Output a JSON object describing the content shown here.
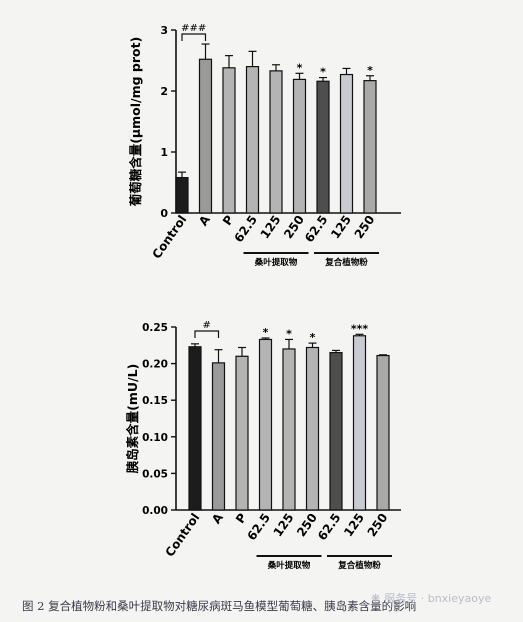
{
  "chart_data": [
    {
      "type": "bar",
      "ylabel": "葡萄糖含量(μmol/mg prot)",
      "ylim": [
        0,
        3
      ],
      "yticks": [
        "0",
        "1",
        "2",
        "3"
      ],
      "categories": [
        "Control",
        "A",
        "P",
        "62.5",
        "125",
        "250",
        "62.5",
        "125",
        "250"
      ],
      "values": [
        0.58,
        2.52,
        2.38,
        2.4,
        2.33,
        2.19,
        2.16,
        2.27,
        2.17
      ],
      "errors": [
        0.09,
        0.25,
        0.2,
        0.25,
        0.1,
        0.1,
        0.06,
        0.1,
        0.08
      ],
      "bar_colors": [
        "#1c1c1c",
        "#9a9a9a",
        "#b4b4b4",
        "#b4b4b4",
        "#b4b4b4",
        "#b4b4b4",
        "#4e4e4e",
        "#c8cbd2",
        "#a9a9a9"
      ],
      "significance": [
        "",
        "",
        "",
        "",
        "",
        "*",
        "*",
        "",
        "*"
      ],
      "comparison_label": "###",
      "groups": [
        {
          "label": "桑叶提取物",
          "from": 3,
          "to": 5
        },
        {
          "label": "复合植物粉",
          "from": 6,
          "to": 8
        }
      ]
    },
    {
      "type": "bar",
      "ylabel": "胰岛素含量(mU/L)",
      "ylim": [
        0,
        0.25
      ],
      "yticks": [
        "0.00",
        "0.05",
        "0.10",
        "0.15",
        "0.20",
        "0.25"
      ],
      "categories": [
        "Control",
        "A",
        "P",
        "62.5",
        "125",
        "250",
        "62.5",
        "125",
        "250"
      ],
      "values": [
        0.223,
        0.201,
        0.21,
        0.233,
        0.22,
        0.222,
        0.215,
        0.238,
        0.211
      ],
      "errors": [
        0.004,
        0.018,
        0.012,
        0.002,
        0.013,
        0.006,
        0.003,
        0.002,
        0.001
      ],
      "bar_colors": [
        "#1c1c1c",
        "#9a9a9a",
        "#b4b4b4",
        "#b4b4b4",
        "#b4b4b4",
        "#b4b4b4",
        "#4e4e4e",
        "#c8cbd2",
        "#a9a9a9"
      ],
      "significance": [
        "",
        "",
        "",
        "*",
        "*",
        "*",
        "",
        "***",
        ""
      ],
      "comparison_label": "#",
      "groups": [
        {
          "label": "桑叶提取物",
          "from": 3,
          "to": 5
        },
        {
          "label": "复合植物粉",
          "from": 6,
          "to": 8
        }
      ]
    }
  ],
  "caption": "图 2  复合植物粉和桑叶提取物对糖尿病斑马鱼模型葡萄糖、胰岛素含量的影响",
  "watermark": {
    "icon": "wechat-icon",
    "text": "服务号 · bnxieyaoye"
  }
}
